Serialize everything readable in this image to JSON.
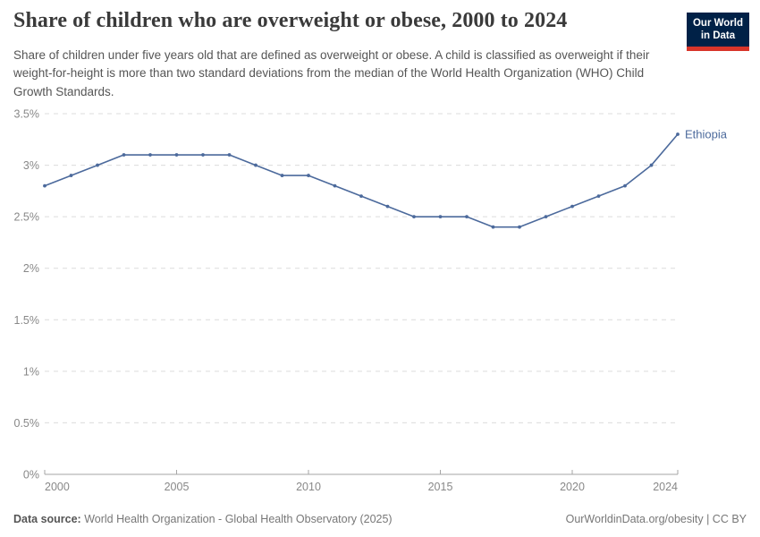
{
  "header": {
    "title": "Share of children who are overweight or obese, 2000 to 2024",
    "subtitle": "Share of children under five years old that are defined as overweight or obese. A child is classified as overweight if their weight-for-height is more than two standard deviations from the median of the World Health Organization (WHO) Child Growth Standards."
  },
  "logo": {
    "line1": "Our World",
    "line2": "in Data",
    "bg_color": "#002147",
    "accent_color": "#d8352a"
  },
  "chart_data": {
    "type": "line",
    "title": "Share of children who are overweight or obese, 2000 to 2024",
    "x": [
      2000,
      2001,
      2002,
      2003,
      2004,
      2005,
      2006,
      2007,
      2008,
      2009,
      2010,
      2011,
      2012,
      2013,
      2014,
      2015,
      2016,
      2017,
      2018,
      2019,
      2020,
      2021,
      2022,
      2023,
      2024
    ],
    "series": [
      {
        "name": "Ethiopia",
        "values": [
          2.8,
          2.9,
          3.0,
          3.1,
          3.1,
          3.1,
          3.1,
          3.1,
          3.0,
          2.9,
          2.9,
          2.8,
          2.7,
          2.6,
          2.5,
          2.5,
          2.5,
          2.4,
          2.4,
          2.5,
          2.6,
          2.7,
          2.8,
          3.0,
          3.3
        ],
        "color": "#4C6A9C"
      }
    ],
    "xlabel": "",
    "ylabel": "",
    "ylim": [
      0,
      3.5
    ],
    "yticks": [
      0,
      0.5,
      1,
      1.5,
      2,
      2.5,
      3,
      3.5
    ],
    "ytick_labels": [
      "0%",
      "0.5%",
      "1%",
      "1.5%",
      "2%",
      "2.5%",
      "3%",
      "3.5%"
    ],
    "xticks": [
      2000,
      2005,
      2010,
      2015,
      2020,
      2024
    ],
    "xtick_labels": [
      "2000",
      "2005",
      "2010",
      "2015",
      "2020",
      "2024"
    ],
    "grid": "horizontal-dashed",
    "legend": "end-of-line-label",
    "grid_color": "#dcdcdc",
    "axis_color": "#a6a6a6",
    "tick_text_color": "#888888"
  },
  "footer": {
    "source_label": "Data source:",
    "source_text": "World Health Organization - Global Health Observatory (2025)",
    "attribution": "OurWorldinData.org/obesity | CC BY"
  }
}
